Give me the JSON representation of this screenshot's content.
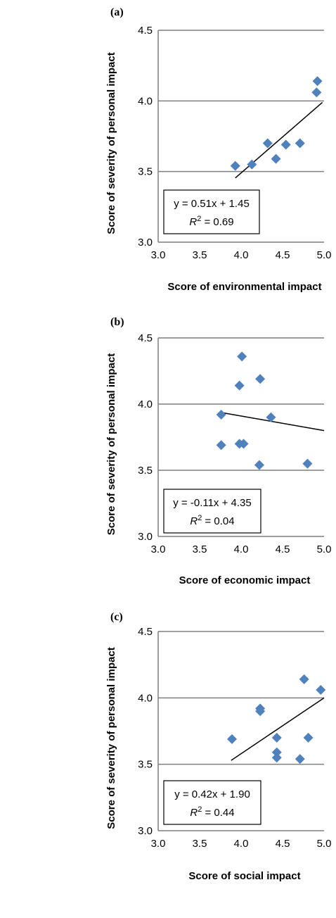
{
  "colors": {
    "marker": "#4f81bd",
    "gridline": "#7f7f7f",
    "trendline": "#000000",
    "text": "#000000"
  },
  "chart_data": [
    {
      "type": "scatter",
      "panel_label": "(a)",
      "xlabel": "Score of environmental impact",
      "ylabel": "Score of severity of personal impact",
      "xlim": [
        3.0,
        5.0
      ],
      "ylim": [
        3.0,
        4.5
      ],
      "xticks": [
        "3.0",
        "3.5",
        "4.0",
        "4.5",
        "5.0"
      ],
      "yticks": [
        "3.0",
        "3.5",
        "4.0",
        "4.5"
      ],
      "grid": "horizontal",
      "points": [
        {
          "x": 3.93,
          "y": 3.54
        },
        {
          "x": 4.13,
          "y": 3.55
        },
        {
          "x": 4.32,
          "y": 3.7
        },
        {
          "x": 4.42,
          "y": 3.59
        },
        {
          "x": 4.54,
          "y": 3.69
        },
        {
          "x": 4.71,
          "y": 3.7
        },
        {
          "x": 4.91,
          "y": 4.06
        },
        {
          "x": 4.92,
          "y": 4.14
        }
      ],
      "trendline": {
        "slope": 0.51,
        "intercept": 1.45,
        "x_range": [
          3.93,
          4.98
        ]
      },
      "equation": "y = 0.51x + 1.45",
      "r2_label": "R",
      "r2_exp": "2",
      "r2_value": " = 0.69"
    },
    {
      "type": "scatter",
      "panel_label": "(b)",
      "xlabel": "Score of economic impact",
      "ylabel": "Score of severity of personal impact",
      "xlim": [
        3.0,
        5.0
      ],
      "ylim": [
        3.0,
        4.5
      ],
      "xticks": [
        "3.0",
        "3.5",
        "4.0",
        "4.5",
        "5.0"
      ],
      "yticks": [
        "3.0",
        "3.5",
        "4.0",
        "4.5"
      ],
      "grid": "horizontal",
      "points": [
        {
          "x": 4.01,
          "y": 4.36
        },
        {
          "x": 4.23,
          "y": 4.19
        },
        {
          "x": 3.98,
          "y": 4.14
        },
        {
          "x": 3.76,
          "y": 3.92
        },
        {
          "x": 4.36,
          "y": 3.9
        },
        {
          "x": 3.76,
          "y": 3.69
        },
        {
          "x": 3.98,
          "y": 3.7
        },
        {
          "x": 4.03,
          "y": 3.7
        },
        {
          "x": 4.22,
          "y": 3.54
        },
        {
          "x": 4.8,
          "y": 3.55
        }
      ],
      "trendline": {
        "slope": -0.11,
        "intercept": 4.35,
        "x_range": [
          3.76,
          5.0
        ]
      },
      "equation": "y = -0.11x + 4.35",
      "r2_label": "R",
      "r2_exp": "2",
      "r2_value": " = 0.04"
    },
    {
      "type": "scatter",
      "panel_label": "(c)",
      "xlabel": "Score of social impact",
      "ylabel": "Score of severity of personal impact",
      "xlim": [
        3.0,
        5.0
      ],
      "ylim": [
        3.0,
        4.5
      ],
      "xticks": [
        "3.0",
        "3.5",
        "4.0",
        "4.5",
        "5.0"
      ],
      "yticks": [
        "3.0",
        "3.5",
        "4.0",
        "4.5"
      ],
      "grid": "horizontal",
      "points": [
        {
          "x": 4.76,
          "y": 4.14
        },
        {
          "x": 4.96,
          "y": 4.06
        },
        {
          "x": 4.23,
          "y": 3.92
        },
        {
          "x": 4.23,
          "y": 3.9
        },
        {
          "x": 3.89,
          "y": 3.69
        },
        {
          "x": 4.43,
          "y": 3.7
        },
        {
          "x": 4.81,
          "y": 3.7
        },
        {
          "x": 4.43,
          "y": 3.59
        },
        {
          "x": 4.43,
          "y": 3.55
        },
        {
          "x": 4.71,
          "y": 3.54
        }
      ],
      "trendline": {
        "slope": 0.42,
        "intercept": 1.9,
        "x_range": [
          3.88,
          5.0
        ]
      },
      "equation": "y = 0.42x + 1.90",
      "r2_label": "R",
      "r2_exp": "2",
      "r2_value": " = 0.44"
    }
  ]
}
